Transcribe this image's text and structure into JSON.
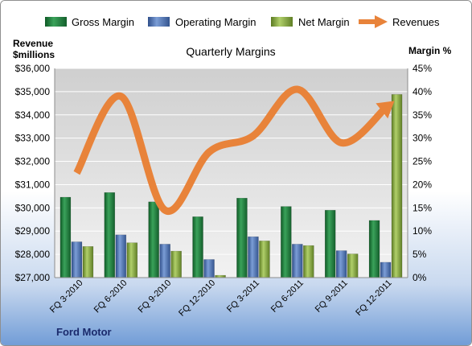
{
  "chart_data": {
    "type": "bar+line",
    "title": "Quarterly Margins",
    "company": "Ford Motor",
    "left_axis_label_line1": "Revenue",
    "left_axis_label_line2": "$millions",
    "right_axis_label": "Margin %",
    "left_ylim": [
      27000,
      36000
    ],
    "left_ticks": [
      27000,
      28000,
      29000,
      30000,
      31000,
      32000,
      33000,
      34000,
      35000,
      36000
    ],
    "left_tick_labels": [
      "$27,000",
      "$28,000",
      "$29,000",
      "$30,000",
      "$31,000",
      "$32,000",
      "$33,000",
      "$34,000",
      "$35,000",
      "$36,000"
    ],
    "right_ylim": [
      0,
      45
    ],
    "right_ticks": [
      0,
      5,
      10,
      15,
      20,
      25,
      30,
      35,
      40,
      45
    ],
    "right_tick_labels": [
      "0%",
      "5%",
      "10%",
      "15%",
      "20%",
      "25%",
      "30%",
      "35%",
      "40%",
      "45%"
    ],
    "categories": [
      "FQ 3-2010",
      "FQ 6-2010",
      "FQ 9-2010",
      "FQ 12-2010",
      "FQ 3-2011",
      "FQ 6-2011",
      "FQ 9-2011",
      "FQ 12-2011"
    ],
    "series": [
      {
        "name": "Gross Margin",
        "axis": "right",
        "kind": "bar",
        "color": "#1e7b3f",
        "values": [
          17.3,
          18.3,
          16.3,
          13.1,
          17.1,
          15.3,
          14.5,
          12.3
        ]
      },
      {
        "name": "Operating Margin",
        "axis": "right",
        "kind": "bar",
        "color": "#4a70b6",
        "values": [
          7.7,
          9.2,
          7.2,
          3.9,
          8.8,
          7.2,
          5.8,
          3.3
        ]
      },
      {
        "name": "Net Margin",
        "axis": "right",
        "kind": "bar",
        "color": "#7ea23a",
        "values": [
          6.7,
          7.5,
          5.7,
          0.5,
          7.9,
          6.9,
          5.1,
          39.4
        ]
      },
      {
        "name": "Revenues",
        "axis": "left",
        "kind": "line",
        "color": "#e8833a",
        "values": [
          31500,
          34800,
          29900,
          32400,
          33100,
          35100,
          32800,
          34300
        ]
      }
    ],
    "grid": true,
    "legend_position": "top"
  }
}
